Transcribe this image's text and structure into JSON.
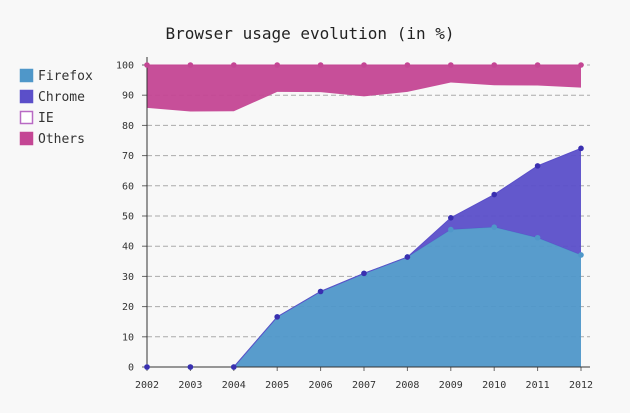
{
  "chart_data": {
    "type": "area",
    "title": "Browser usage evolution (in %)",
    "xlabel": "",
    "ylabel": "",
    "x": [
      "2002",
      "2003",
      "2004",
      "2005",
      "2006",
      "2007",
      "2008",
      "2009",
      "2010",
      "2011",
      "2012"
    ],
    "ylim": [
      0,
      100
    ],
    "yticks": [
      0,
      10,
      20,
      30,
      40,
      50,
      60,
      70,
      80,
      90,
      100
    ],
    "stacked": true,
    "grid": true,
    "legend_position": "left",
    "series": [
      {
        "name": "Firefox",
        "color": "#4f97c9",
        "values": [
          0,
          0,
          0,
          16.6,
          25,
          31,
          36.4,
          45.5,
          46.3,
          42.8,
          37.1
        ]
      },
      {
        "name": "Chrome",
        "color": "#5b4fc9",
        "values": [
          0,
          0,
          0,
          0,
          0,
          0,
          0,
          3.9,
          10.8,
          23.8,
          35.3
        ]
      },
      {
        "name": "IE",
        "color": "#b86ac4",
        "values": [
          85.8,
          84.6,
          84.7,
          74.5,
          66,
          58.6,
          54.7,
          44.8,
          36.2,
          26.6,
          20.1
        ]
      },
      {
        "name": "Others",
        "color": "#c44694",
        "values": [
          14.2,
          15.4,
          15.3,
          8.9,
          9,
          10.4,
          8.9,
          5.8,
          6.7,
          6.8,
          7.5
        ]
      }
    ]
  }
}
